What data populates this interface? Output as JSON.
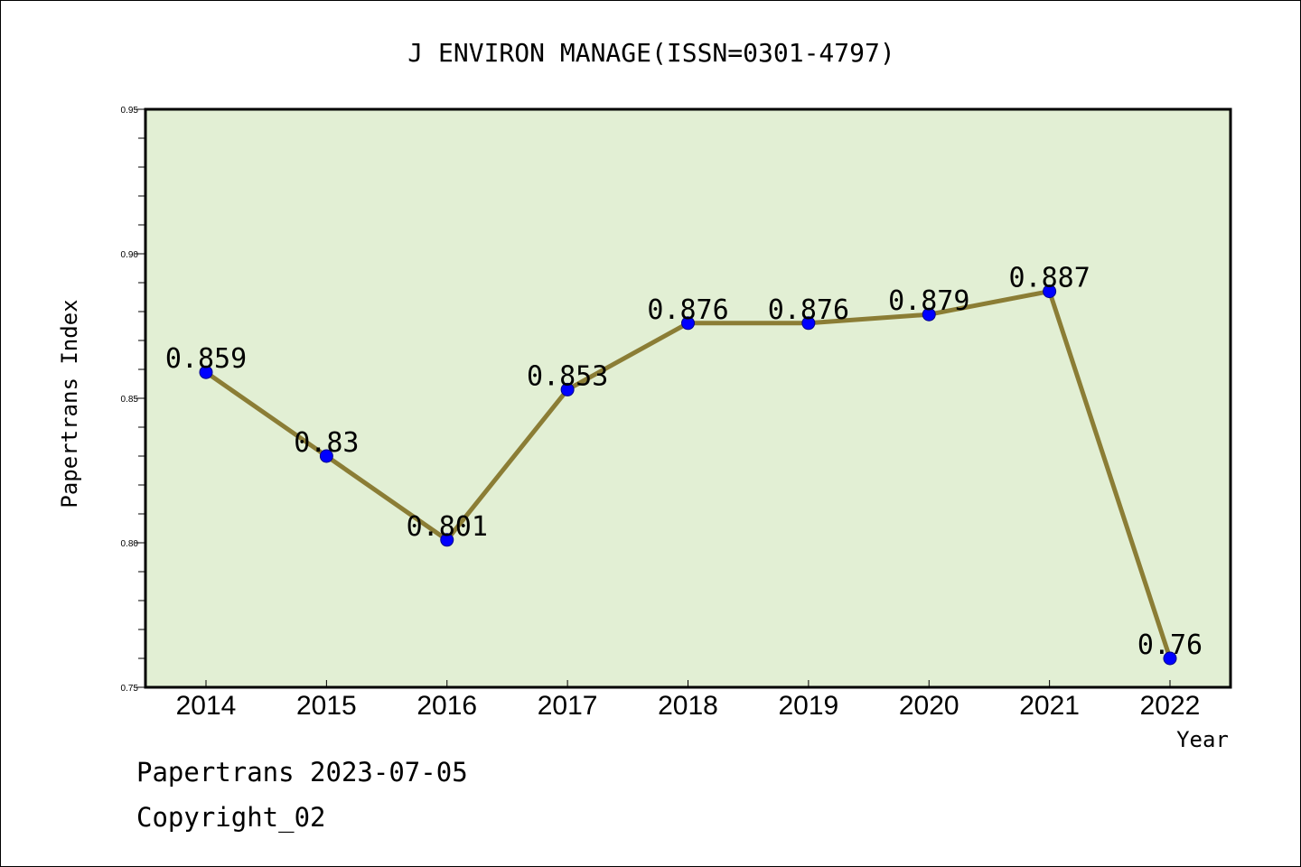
{
  "chart_data": {
    "type": "line",
    "title": "J ENVIRON MANAGE(ISSN=0301-4797)",
    "xlabel": "Year",
    "ylabel": "Papertrans Index",
    "categories": [
      "2014",
      "2015",
      "2016",
      "2017",
      "2018",
      "2019",
      "2020",
      "2021",
      "2022"
    ],
    "values": [
      0.859,
      0.83,
      0.801,
      0.853,
      0.876,
      0.876,
      0.879,
      0.887,
      0.76
    ],
    "data_labels": [
      "0.859",
      "0.83",
      "0.801",
      "0.853",
      "0.876",
      "0.876",
      "0.879",
      "0.887",
      "0.76"
    ],
    "ylim": [
      0.75,
      0.95
    ],
    "yticks": [
      "0.75",
      "0.80",
      "0.85",
      "0.90",
      "0.95"
    ],
    "grid": false,
    "colors": {
      "plot_background": "#e2efd4",
      "line": "#8b7d35",
      "marker": "#0000ff"
    }
  },
  "footer": {
    "line1": "Papertrans 2023-07-05",
    "line2": "Copyright_02"
  }
}
